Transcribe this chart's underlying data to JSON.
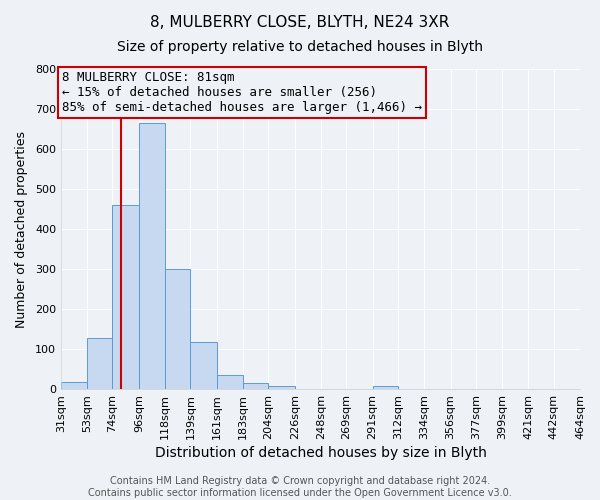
{
  "title": "8, MULBERRY CLOSE, BLYTH, NE24 3XR",
  "subtitle": "Size of property relative to detached houses in Blyth",
  "xlabel": "Distribution of detached houses by size in Blyth",
  "ylabel": "Number of detached properties",
  "bar_edges": [
    31,
    53,
    74,
    96,
    118,
    139,
    161,
    183,
    204,
    226,
    248,
    269,
    291,
    312,
    334,
    356,
    377,
    399,
    421,
    442,
    464
  ],
  "bar_heights": [
    18,
    128,
    460,
    665,
    300,
    118,
    35,
    15,
    8,
    0,
    0,
    0,
    8,
    0,
    0,
    0,
    0,
    0,
    0,
    0
  ],
  "bar_color": "#c6d9f0",
  "bar_edge_color": "#5b9bd5",
  "vline_x": 81,
  "vline_color": "#cc0000",
  "annotation_line1": "8 MULBERRY CLOSE: 81sqm",
  "annotation_line2": "← 15% of detached houses are smaller (256)",
  "annotation_line3": "85% of semi-detached houses are larger (1,466) →",
  "annotation_box_color": "#cc0000",
  "ylim": [
    0,
    800
  ],
  "yticks": [
    0,
    100,
    200,
    300,
    400,
    500,
    600,
    700,
    800
  ],
  "tick_labels": [
    "31sqm",
    "53sqm",
    "74sqm",
    "96sqm",
    "118sqm",
    "139sqm",
    "161sqm",
    "183sqm",
    "204sqm",
    "226sqm",
    "248sqm",
    "269sqm",
    "291sqm",
    "312sqm",
    "334sqm",
    "356sqm",
    "377sqm",
    "399sqm",
    "421sqm",
    "442sqm",
    "464sqm"
  ],
  "footer_text": "Contains HM Land Registry data © Crown copyright and database right 2024.\nContains public sector information licensed under the Open Government Licence v3.0.",
  "background_color": "#eef2f7",
  "grid_color": "#ffffff",
  "title_fontsize": 11,
  "subtitle_fontsize": 10,
  "xlabel_fontsize": 10,
  "ylabel_fontsize": 9,
  "tick_fontsize": 8,
  "annotation_fontsize": 9,
  "footer_fontsize": 7
}
